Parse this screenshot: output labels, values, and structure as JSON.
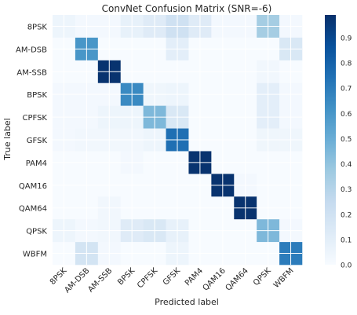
{
  "chart_data": {
    "type": "heatmap",
    "title": "ConvNet Confusion Matrix (SNR=-6)",
    "xlabel": "Predicted label",
    "ylabel": "True label",
    "categories": [
      "8PSK",
      "AM-DSB",
      "AM-SSB",
      "BPSK",
      "CPFSK",
      "GFSK",
      "PAM4",
      "QAM16",
      "QAM64",
      "QPSK",
      "WBFM"
    ],
    "values": [
      [
        0.05,
        0.02,
        0.02,
        0.08,
        0.12,
        0.2,
        0.12,
        0.02,
        0.02,
        0.35,
        0.02
      ],
      [
        0.0,
        0.6,
        0.0,
        0.0,
        0.0,
        0.1,
        0.0,
        0.0,
        0.0,
        0.0,
        0.15
      ],
      [
        0.0,
        0.0,
        0.98,
        0.0,
        0.0,
        0.0,
        0.0,
        0.0,
        0.0,
        0.03,
        0.0
      ],
      [
        0.02,
        0.02,
        0.02,
        0.65,
        0.04,
        0.05,
        0.0,
        0.0,
        0.0,
        0.1,
        0.02
      ],
      [
        0.02,
        0.02,
        0.05,
        0.05,
        0.45,
        0.15,
        0.0,
        0.0,
        0.0,
        0.1,
        0.02
      ],
      [
        0.02,
        0.03,
        0.03,
        0.03,
        0.05,
        0.75,
        0.0,
        0.0,
        0.0,
        0.04,
        0.04
      ],
      [
        0.0,
        0.0,
        0.0,
        0.02,
        0.0,
        0.0,
        0.98,
        0.0,
        0.0,
        0.0,
        0.0
      ],
      [
        0.0,
        0.0,
        0.0,
        0.0,
        0.0,
        0.0,
        0.0,
        0.98,
        0.02,
        0.0,
        0.0
      ],
      [
        0.0,
        0.0,
        0.03,
        0.0,
        0.0,
        0.0,
        0.0,
        0.0,
        0.98,
        0.0,
        0.0
      ],
      [
        0.05,
        0.02,
        0.03,
        0.12,
        0.15,
        0.08,
        0.0,
        0.0,
        0.0,
        0.45,
        0.02
      ],
      [
        0.0,
        0.18,
        0.02,
        0.0,
        0.0,
        0.05,
        0.0,
        0.0,
        0.0,
        0.0,
        0.7
      ]
    ],
    "colorbar": {
      "range": [
        0.0,
        0.99
      ],
      "ticks": [
        "0.0",
        "0.1",
        "0.2",
        "0.3",
        "0.4",
        "0.5",
        "0.6",
        "0.7",
        "0.8",
        "0.9"
      ],
      "colormap": "Blues",
      "colors": [
        "#f7fbff",
        "#deebf7",
        "#c6dbef",
        "#9ecae1",
        "#6baed6",
        "#4292c6",
        "#2171b5",
        "#08519c",
        "#08306b"
      ]
    },
    "grid": true
  }
}
